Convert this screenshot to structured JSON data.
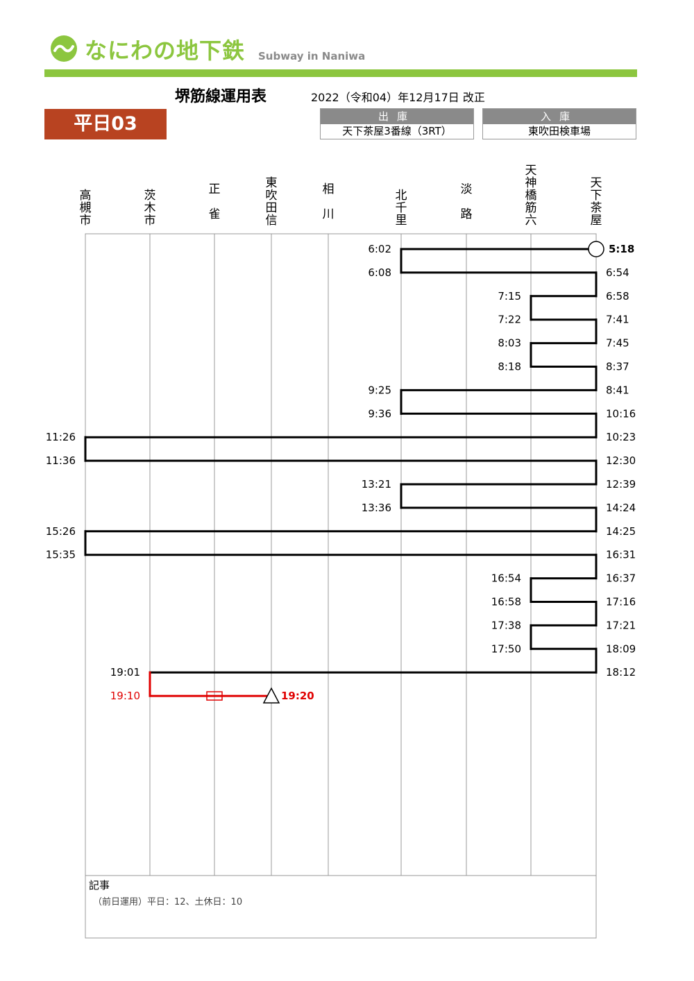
{
  "header": {
    "logo_text": "なにわの地下鉄",
    "logo_sub": "Subway in Naniwa",
    "title": "堺筋線運用表",
    "revision": "2022（令和04）年12月17日 改正",
    "run_label": "平日03"
  },
  "depart": {
    "label": "出庫",
    "value": "天下茶屋3番線（3RT）"
  },
  "arrive": {
    "label": "入庫",
    "value": "東吹田検車場"
  },
  "colors": {
    "brand": "#8cc63f",
    "badge": "#b84321",
    "line": "#000000",
    "out_of_service": "#e00000",
    "grid": "#999999"
  },
  "stations": [
    {
      "id": "takatsuki",
      "name": "高槻市"
    },
    {
      "id": "ibaraki",
      "name": "茨木市"
    },
    {
      "id": "shojaku",
      "name": "正雀"
    },
    {
      "id": "higashisuita",
      "name": "東吹田信"
    },
    {
      "id": "aikawa",
      "name": "相川"
    },
    {
      "id": "kitasenri",
      "name": "北千里"
    },
    {
      "id": "awaji",
      "name": "淡路"
    },
    {
      "id": "tenroku",
      "name": "天神橋筋六"
    },
    {
      "id": "tengachaya",
      "name": "天下茶屋"
    }
  ],
  "chart_data": {
    "type": "operation_diagram",
    "start": {
      "station": "tengachaya",
      "time": "5:18",
      "marker": "circle"
    },
    "end": {
      "station": "higashisuita",
      "time": "19:20",
      "marker": "triangle"
    },
    "trips": [
      {
        "from": "tengachaya",
        "dep": "5:18",
        "to": "kitasenri",
        "arr": "6:02"
      },
      {
        "from": "kitasenri",
        "dep": "6:08",
        "to": "tengachaya",
        "arr": "6:54"
      },
      {
        "from": "tengachaya",
        "dep": "6:58",
        "to": "tenroku",
        "arr": "7:15"
      },
      {
        "from": "tenroku",
        "dep": "7:22",
        "to": "tengachaya",
        "arr": "7:41"
      },
      {
        "from": "tengachaya",
        "dep": "7:45",
        "to": "tenroku",
        "arr": "8:03"
      },
      {
        "from": "tenroku",
        "dep": "8:18",
        "to": "tengachaya",
        "arr": "8:37"
      },
      {
        "from": "tengachaya",
        "dep": "8:41",
        "to": "kitasenri",
        "arr": "9:25"
      },
      {
        "from": "kitasenri",
        "dep": "9:36",
        "to": "tengachaya",
        "arr": "10:16"
      },
      {
        "from": "tengachaya",
        "dep": "10:23",
        "to": "takatsuki",
        "arr": "11:26"
      },
      {
        "from": "takatsuki",
        "dep": "11:36",
        "to": "tengachaya",
        "arr": "12:30"
      },
      {
        "from": "tengachaya",
        "dep": "12:39",
        "to": "kitasenri",
        "arr": "13:21"
      },
      {
        "from": "kitasenri",
        "dep": "13:36",
        "to": "tengachaya",
        "arr": "14:24"
      },
      {
        "from": "tengachaya",
        "dep": "14:25",
        "to": "takatsuki",
        "arr": "15:26"
      },
      {
        "from": "takatsuki",
        "dep": "15:35",
        "to": "tengachaya",
        "arr": "16:31"
      },
      {
        "from": "tengachaya",
        "dep": "16:37",
        "to": "tenroku",
        "arr": "16:54"
      },
      {
        "from": "tenroku",
        "dep": "16:58",
        "to": "tengachaya",
        "arr": "17:16"
      },
      {
        "from": "tengachaya",
        "dep": "17:21",
        "to": "tenroku",
        "arr": "17:38"
      },
      {
        "from": "tenroku",
        "dep": "17:50",
        "to": "tengachaya",
        "arr": "18:09"
      },
      {
        "from": "tengachaya",
        "dep": "18:12",
        "to": "ibaraki",
        "arr": "19:01"
      },
      {
        "from": "ibaraki",
        "dep": "19:10",
        "to": "higashisuita",
        "arr": "19:20",
        "out_of_service": true
      }
    ]
  },
  "notes": {
    "title": "記事",
    "text": "（前日運用）平日：12、土休日：10"
  }
}
